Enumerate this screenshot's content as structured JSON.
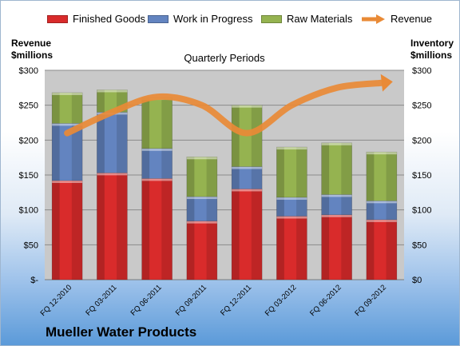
{
  "footer_title": "Mueller Water Products",
  "chart_data": {
    "type": "bar",
    "title": "Quarterly Periods",
    "y_left_label": [
      "Revenue",
      "$millions"
    ],
    "y_right_label": [
      "Inventory",
      "$millions"
    ],
    "categories": [
      "FQ 12-2010",
      "FQ 03-2011",
      "FQ 06-2011",
      "FQ 09-2011",
      "FQ 12-2011",
      "FQ 03-2012",
      "FQ 06-2012",
      "FQ 09-2012"
    ],
    "y_left_ticks": [
      "$-",
      "$50",
      "$100",
      "$150",
      "$200",
      "$250",
      "$300"
    ],
    "y_right_ticks": [
      "$0",
      "$50",
      "$100",
      "$150",
      "$200",
      "$250",
      "$300"
    ],
    "ylim": [
      0,
      300
    ],
    "stacked": true,
    "grid": true,
    "legend_position": "top",
    "series": [
      {
        "name": "Finished Goods",
        "type": "bar",
        "color": "#d92b2b",
        "values": [
          142,
          153,
          145,
          84,
          130,
          91,
          93,
          86
        ]
      },
      {
        "name": "Work in Progress",
        "type": "bar",
        "color": "#6384c0",
        "values": [
          82,
          87,
          43,
          35,
          32,
          27,
          29,
          27
        ]
      },
      {
        "name": "Raw Materials",
        "type": "bar",
        "color": "#95b350",
        "values": [
          44,
          32,
          73,
          57,
          88,
          72,
          74,
          70
        ]
      },
      {
        "name": "Revenue",
        "type": "line",
        "color": "#e98a36",
        "values": [
          210,
          240,
          262,
          250,
          210,
          250,
          275,
          282
        ]
      }
    ]
  }
}
